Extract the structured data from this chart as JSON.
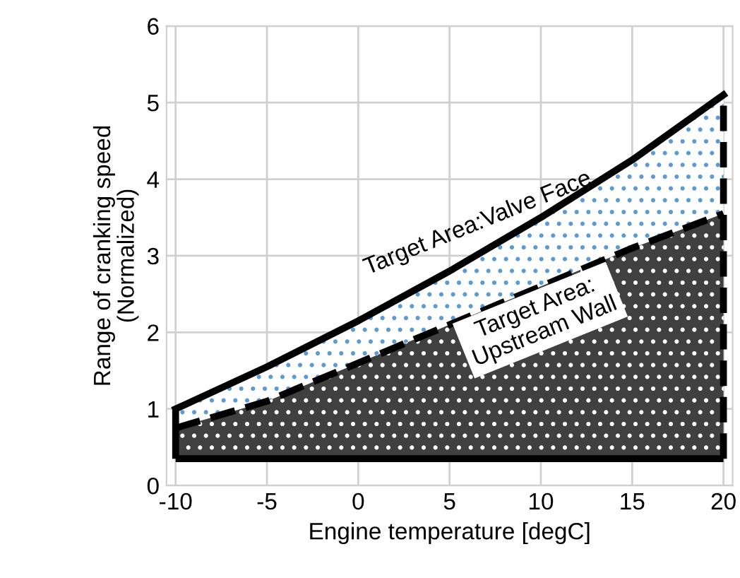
{
  "chart_data": {
    "type": "line",
    "xlabel": "Engine temperature [degC]",
    "ylabel": "Range of cranking speed\n(Normalized)",
    "x": [
      -10,
      -5,
      0,
      5,
      10,
      15,
      20
    ],
    "xlim": [
      -10.5,
      20.5
    ],
    "xticks": [
      -10,
      -5,
      0,
      5,
      10,
      15,
      20
    ],
    "ylim": [
      0,
      6
    ],
    "yticks": [
      0,
      1,
      2,
      3,
      4,
      5,
      6
    ],
    "grid": true,
    "legend": false,
    "marker": "none",
    "series": [
      {
        "color": "#000000",
        "line_style": "solid",
        "values": [
          1.0,
          1.55,
          2.15,
          2.8,
          3.5,
          4.25,
          5.1
        ],
        "lower": [
          0.75,
          1.1,
          1.6,
          2.1,
          2.6,
          3.1,
          3.55
        ],
        "upper": [
          1.0,
          1.55,
          2.15,
          2.8,
          3.5,
          4.25,
          5.1
        ]
      },
      {
        "color": "#000000",
        "line_style": "dashed",
        "values": [
          0.75,
          1.1,
          1.6,
          2.1,
          2.6,
          3.1,
          3.55
        ],
        "lower": [
          0.35,
          0.35,
          0.35,
          0.35,
          0.35,
          0.35,
          0.35
        ],
        "upper": [
          0.75,
          1.1,
          1.6,
          2.1,
          2.6,
          3.1,
          3.55
        ]
      }
    ],
    "ref_lines": [
      {
        "axis": "y",
        "value": 0.35,
        "color": "#000000",
        "line_style": "solid"
      },
      {
        "axis": "x",
        "value": -10,
        "color": "#000000",
        "line_style": "solid"
      },
      {
        "axis": "x",
        "value": 20,
        "color": "#000000",
        "line_style": "dashed"
      }
    ],
    "annotations": [
      "Target Area:Valve Face",
      "Target Area:\nUpstream Wall"
    ]
  }
}
